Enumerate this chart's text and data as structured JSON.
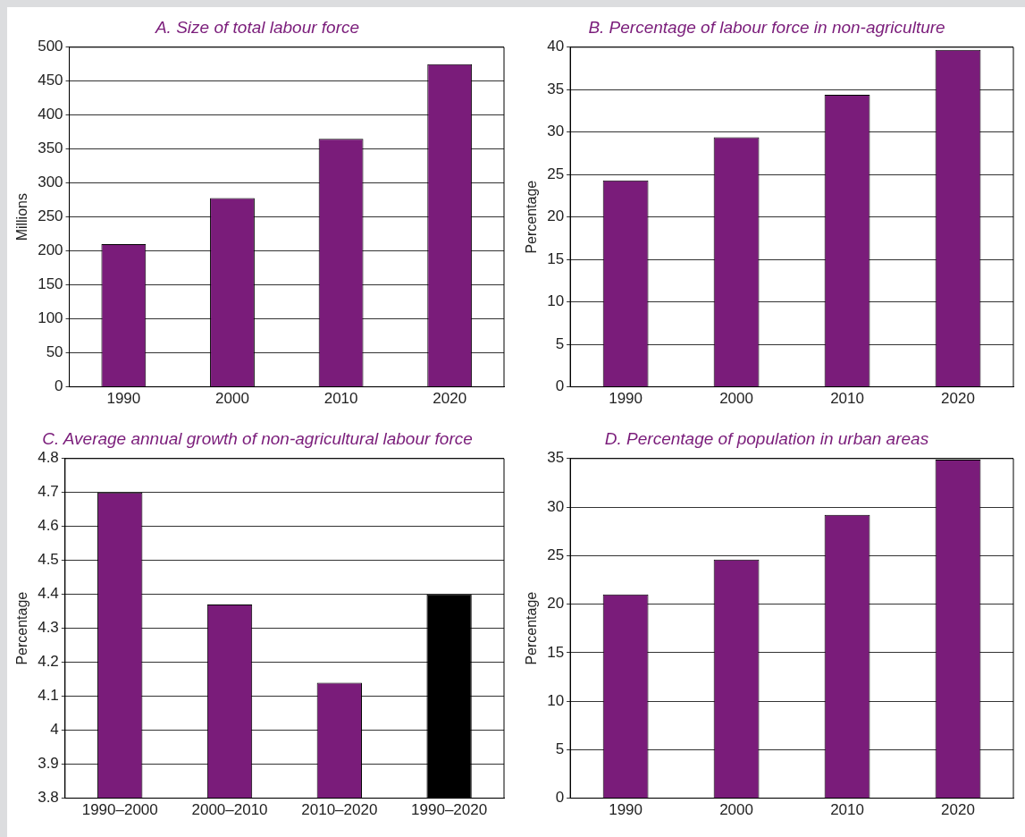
{
  "chart_data": [
    {
      "type": "bar",
      "title": "A. Size of total labour force",
      "ylabel": "Millions",
      "categories": [
        "1990",
        "2000",
        "2010",
        "2020"
      ],
      "values": [
        210,
        278,
        365,
        475
      ],
      "color": "#7a1c7a",
      "ylim": [
        0,
        500
      ],
      "yticks": [
        0,
        50,
        100,
        150,
        200,
        250,
        300,
        350,
        400,
        450,
        500
      ],
      "grid": "y"
    },
    {
      "type": "bar",
      "title": "B. Percentage of labour force in non-agriculture",
      "ylabel": "Percentage",
      "categories": [
        "1990",
        "2000",
        "2010",
        "2020"
      ],
      "values": [
        24.3,
        29.4,
        34.4,
        39.7
      ],
      "color": "#7a1c7a",
      "ylim": [
        0,
        40
      ],
      "yticks": [
        0,
        5,
        10,
        15,
        20,
        25,
        30,
        35,
        40
      ],
      "grid": "y"
    },
    {
      "type": "bar",
      "title": "C. Average annual growth of non-agricultural labour force",
      "ylabel": "Percentage",
      "categories": [
        "1990–2000",
        "2000–2010",
        "2010–2020",
        "1990–2020"
      ],
      "values": [
        4.7,
        4.37,
        4.14,
        4.4
      ],
      "colors": [
        "#7a1c7a",
        "#7a1c7a",
        "#7a1c7a",
        "#000000"
      ],
      "ylim": [
        3.8,
        4.8
      ],
      "yticks": [
        3.8,
        3.9,
        4,
        4.1,
        4.2,
        4.3,
        4.4,
        4.5,
        4.6,
        4.7,
        4.8
      ],
      "grid": "y"
    },
    {
      "type": "bar",
      "title": "D. Percentage of population in urban areas",
      "ylabel": "Percentage",
      "categories": [
        "1990",
        "2000",
        "2010",
        "2020"
      ],
      "values": [
        21,
        24.6,
        29.2,
        34.9
      ],
      "color": "#7a1c7a",
      "ylim": [
        0,
        35
      ],
      "yticks": [
        0,
        5,
        10,
        15,
        20,
        25,
        30,
        35
      ],
      "grid": "y"
    }
  ]
}
